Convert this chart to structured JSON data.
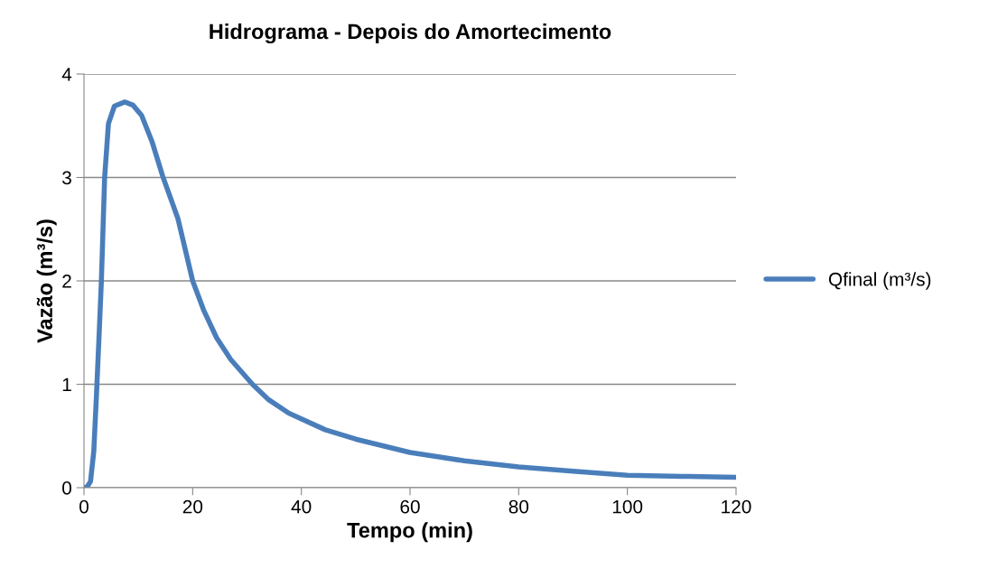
{
  "chart_data": {
    "type": "line",
    "title": "Hidrograma - Depois do Amortecimento",
    "xlabel": "Tempo (min)",
    "ylabel": "Vazão (m³/s)",
    "series": [
      {
        "name": "Qfinal (m³/s)",
        "color": "#4a7ebb",
        "x": [
          0,
          0.6,
          1.2,
          1.8,
          2.3,
          2.8,
          3.2,
          3.8,
          4.5,
          5.6,
          7.5,
          9,
          10.6,
          12.5,
          14.5,
          17.3,
          20,
          22,
          24.4,
          27,
          31,
          34,
          37.7,
          44.4,
          50,
          60,
          70,
          80,
          90,
          100,
          110,
          120
        ],
        "values": [
          0,
          0.01,
          0.06,
          0.35,
          0.9,
          1.5,
          2.0,
          3.0,
          3.52,
          3.69,
          3.73,
          3.7,
          3.6,
          3.35,
          3.01,
          2.6,
          2.0,
          1.72,
          1.45,
          1.24,
          1.0,
          0.85,
          0.72,
          0.56,
          0.47,
          0.34,
          0.26,
          0.2,
          0.16,
          0.12,
          0.11,
          0.1
        ]
      }
    ],
    "xlim": [
      0,
      120
    ],
    "xticks": [
      0,
      20,
      40,
      60,
      80,
      100,
      120
    ],
    "ylim": [
      0,
      4
    ],
    "yticks": [
      0,
      1,
      2,
      3,
      4
    ],
    "grid": "y",
    "legend": "right",
    "marker": "none",
    "line_style": "solid"
  }
}
